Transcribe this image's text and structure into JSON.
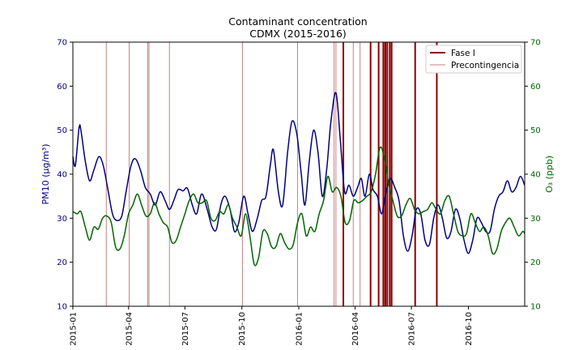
{
  "chart_data": {
    "type": "line",
    "title": "Contaminant concentration",
    "subtitle": "CDMX (2015-2016)",
    "ylabel_left": "PM10 (µg/m³)",
    "ylabel_right": "O₃ (ppb)",
    "ylim_left": [
      10,
      70
    ],
    "ylim_right": [
      10,
      70
    ],
    "yticks": [
      10,
      20,
      30,
      40,
      50,
      60,
      70
    ],
    "xlim": [
      "2015-01-01",
      "2016-12-31"
    ],
    "xticks": [
      "2015-01",
      "2015-04",
      "2015-07",
      "2015-10",
      "2016-01",
      "2016-04",
      "2016-07",
      "2016-10"
    ],
    "grid": false,
    "legend_position": "top-right",
    "legend": [
      {
        "label": "Fase I",
        "color": "#8b0000"
      },
      {
        "label": "Precontingencia",
        "color": "#cd7f7f"
      }
    ],
    "colors": {
      "pm10": "#000080",
      "o3": "#006400",
      "left_axis": "#000080",
      "right_axis": "#006400",
      "fase_i": "#8b0000",
      "precontingencia": "#cd7f7f"
    },
    "series": [
      {
        "axis": "left",
        "points": [
          [
            "2015-01-01",
            44
          ],
          [
            "2015-01-05",
            42
          ],
          [
            "2015-01-11",
            50.5
          ],
          [
            "2015-01-14",
            50
          ],
          [
            "2015-01-21",
            43
          ],
          [
            "2015-01-28",
            38.5
          ],
          [
            "2015-02-04",
            41
          ],
          [
            "2015-02-12",
            44
          ],
          [
            "2015-02-19",
            42
          ],
          [
            "2015-02-26",
            37
          ],
          [
            "2015-03-06",
            31
          ],
          [
            "2015-03-13",
            29.5
          ],
          [
            "2015-03-21",
            30.5
          ],
          [
            "2015-03-28",
            36
          ],
          [
            "2015-04-05",
            42
          ],
          [
            "2015-04-12",
            43.5
          ],
          [
            "2015-04-20",
            41
          ],
          [
            "2015-04-28",
            37
          ],
          [
            "2015-05-06",
            35.5
          ],
          [
            "2015-05-14",
            33
          ],
          [
            "2015-05-22",
            36
          ],
          [
            "2015-05-30",
            34
          ],
          [
            "2015-06-06",
            32
          ],
          [
            "2015-06-13",
            34
          ],
          [
            "2015-06-20",
            36.5
          ],
          [
            "2015-06-28",
            36.2
          ],
          [
            "2015-07-05",
            36.8
          ],
          [
            "2015-07-13",
            33
          ],
          [
            "2015-07-20",
            31
          ],
          [
            "2015-07-28",
            35.5
          ],
          [
            "2015-08-06",
            32
          ],
          [
            "2015-08-14",
            28
          ],
          [
            "2015-08-21",
            27.5
          ],
          [
            "2015-08-28",
            33
          ],
          [
            "2015-09-04",
            35
          ],
          [
            "2015-09-12",
            32
          ],
          [
            "2015-09-19",
            27
          ],
          [
            "2015-09-26",
            29
          ],
          [
            "2015-10-04",
            35
          ],
          [
            "2015-10-11",
            31
          ],
          [
            "2015-10-18",
            27
          ],
          [
            "2015-10-26",
            30
          ],
          [
            "2015-11-02",
            34
          ],
          [
            "2015-11-09",
            35
          ],
          [
            "2015-11-16",
            42
          ],
          [
            "2015-11-21",
            45.5
          ],
          [
            "2015-11-29",
            36
          ],
          [
            "2015-12-06",
            33
          ],
          [
            "2015-12-14",
            45
          ],
          [
            "2015-12-21",
            52
          ],
          [
            "2015-12-29",
            49
          ],
          [
            "2016-01-05",
            40
          ],
          [
            "2016-01-11",
            33
          ],
          [
            "2016-01-18",
            43
          ],
          [
            "2016-01-25",
            50
          ],
          [
            "2016-02-01",
            45
          ],
          [
            "2016-02-08",
            35
          ],
          [
            "2016-02-15",
            41
          ],
          [
            "2016-02-22",
            52
          ],
          [
            "2016-03-01",
            58.5
          ],
          [
            "2016-03-08",
            48
          ],
          [
            "2016-03-15",
            36
          ],
          [
            "2016-03-22",
            37.5
          ],
          [
            "2016-03-29",
            35
          ],
          [
            "2016-04-05",
            37
          ],
          [
            "2016-04-11",
            39
          ],
          [
            "2016-04-17",
            35
          ],
          [
            "2016-04-24",
            40
          ],
          [
            "2016-04-30",
            36.5
          ],
          [
            "2016-05-07",
            35
          ],
          [
            "2016-05-14",
            31
          ],
          [
            "2016-05-21",
            36
          ],
          [
            "2016-05-28",
            39
          ],
          [
            "2016-06-04",
            37
          ],
          [
            "2016-06-11",
            34
          ],
          [
            "2016-06-18",
            26
          ],
          [
            "2016-06-25",
            22.5
          ],
          [
            "2016-07-02",
            26
          ],
          [
            "2016-07-09",
            32
          ],
          [
            "2016-07-16",
            31
          ],
          [
            "2016-07-23",
            25
          ],
          [
            "2016-07-30",
            24
          ],
          [
            "2016-08-06",
            30
          ],
          [
            "2016-08-13",
            33
          ],
          [
            "2016-08-20",
            30
          ],
          [
            "2016-08-27",
            25.5
          ],
          [
            "2016-09-03",
            27
          ],
          [
            "2016-09-10",
            32
          ],
          [
            "2016-09-17",
            30
          ],
          [
            "2016-09-24",
            25
          ],
          [
            "2016-10-01",
            22
          ],
          [
            "2016-10-08",
            25
          ],
          [
            "2016-10-15",
            30
          ],
          [
            "2016-10-22",
            29
          ],
          [
            "2016-10-29",
            27
          ],
          [
            "2016-11-05",
            27
          ],
          [
            "2016-11-12",
            32
          ],
          [
            "2016-11-19",
            35
          ],
          [
            "2016-11-26",
            36
          ],
          [
            "2016-12-03",
            38.5
          ],
          [
            "2016-12-10",
            36
          ],
          [
            "2016-12-17",
            37
          ],
          [
            "2016-12-24",
            39.5
          ],
          [
            "2016-12-31",
            37.5
          ]
        ]
      },
      {
        "axis": "right",
        "points": [
          [
            "2015-01-01",
            31.5
          ],
          [
            "2015-01-08",
            31
          ],
          [
            "2015-01-14",
            31.5
          ],
          [
            "2015-01-21",
            28
          ],
          [
            "2015-01-28",
            25
          ],
          [
            "2015-02-04",
            28
          ],
          [
            "2015-02-11",
            27.5
          ],
          [
            "2015-02-18",
            30
          ],
          [
            "2015-02-25",
            30.5
          ],
          [
            "2015-03-04",
            29
          ],
          [
            "2015-03-11",
            23.5
          ],
          [
            "2015-03-18",
            23
          ],
          [
            "2015-03-25",
            26
          ],
          [
            "2015-04-01",
            31
          ],
          [
            "2015-04-08",
            33
          ],
          [
            "2015-04-15",
            35.5
          ],
          [
            "2015-04-22",
            33
          ],
          [
            "2015-04-29",
            30.5
          ],
          [
            "2015-05-06",
            31
          ],
          [
            "2015-05-13",
            33.5
          ],
          [
            "2015-05-20",
            31
          ],
          [
            "2015-05-27",
            29
          ],
          [
            "2015-06-03",
            28
          ],
          [
            "2015-06-10",
            24.5
          ],
          [
            "2015-06-17",
            25
          ],
          [
            "2015-06-24",
            28
          ],
          [
            "2015-07-01",
            31
          ],
          [
            "2015-07-08",
            34
          ],
          [
            "2015-07-15",
            35.5
          ],
          [
            "2015-07-22",
            33.5
          ],
          [
            "2015-07-29",
            33.5
          ],
          [
            "2015-08-05",
            34
          ],
          [
            "2015-08-12",
            30
          ],
          [
            "2015-08-19",
            29.5
          ],
          [
            "2015-08-26",
            31.5
          ],
          [
            "2015-09-02",
            31
          ],
          [
            "2015-09-09",
            33
          ],
          [
            "2015-09-16",
            30
          ],
          [
            "2015-09-23",
            28
          ],
          [
            "2015-09-30",
            26
          ],
          [
            "2015-10-07",
            31
          ],
          [
            "2015-10-14",
            26
          ],
          [
            "2015-10-21",
            19.5
          ],
          [
            "2015-10-28",
            21
          ],
          [
            "2015-11-04",
            27
          ],
          [
            "2015-11-11",
            26.5
          ],
          [
            "2015-11-18",
            23.5
          ],
          [
            "2015-11-25",
            23.5
          ],
          [
            "2015-12-02",
            26.5
          ],
          [
            "2015-12-09",
            24.5
          ],
          [
            "2015-12-16",
            23
          ],
          [
            "2015-12-23",
            24
          ],
          [
            "2015-12-30",
            29
          ],
          [
            "2016-01-06",
            31
          ],
          [
            "2016-01-13",
            26
          ],
          [
            "2016-01-20",
            28
          ],
          [
            "2016-01-27",
            27
          ],
          [
            "2016-02-03",
            31
          ],
          [
            "2016-02-10",
            34
          ],
          [
            "2016-02-17",
            39.5
          ],
          [
            "2016-02-24",
            36
          ],
          [
            "2016-03-02",
            37
          ],
          [
            "2016-03-09",
            35
          ],
          [
            "2016-03-16",
            29
          ],
          [
            "2016-03-23",
            29.5
          ],
          [
            "2016-03-30",
            34
          ],
          [
            "2016-04-06",
            33.5
          ],
          [
            "2016-04-13",
            34
          ],
          [
            "2016-04-20",
            35
          ],
          [
            "2016-04-27",
            36
          ],
          [
            "2016-05-04",
            40
          ],
          [
            "2016-05-11",
            46
          ],
          [
            "2016-05-18",
            44
          ],
          [
            "2016-05-25",
            38
          ],
          [
            "2016-06-01",
            34
          ],
          [
            "2016-06-08",
            30.5
          ],
          [
            "2016-06-15",
            30.5
          ],
          [
            "2016-06-22",
            33
          ],
          [
            "2016-06-29",
            34.5
          ],
          [
            "2016-07-06",
            32
          ],
          [
            "2016-07-13",
            31
          ],
          [
            "2016-07-20",
            31.5
          ],
          [
            "2016-07-27",
            32
          ],
          [
            "2016-08-03",
            33.5
          ],
          [
            "2016-08-10",
            32
          ],
          [
            "2016-08-17",
            31
          ],
          [
            "2016-08-24",
            34
          ],
          [
            "2016-08-31",
            35
          ],
          [
            "2016-09-07",
            31
          ],
          [
            "2016-09-14",
            27
          ],
          [
            "2016-09-21",
            26
          ],
          [
            "2016-09-28",
            26.5
          ],
          [
            "2016-10-05",
            31
          ],
          [
            "2016-10-12",
            29
          ],
          [
            "2016-10-19",
            27
          ],
          [
            "2016-10-26",
            28
          ],
          [
            "2016-11-02",
            26
          ],
          [
            "2016-11-09",
            22
          ],
          [
            "2016-11-16",
            23
          ],
          [
            "2016-11-23",
            27
          ],
          [
            "2016-11-30",
            29
          ],
          [
            "2016-12-07",
            30
          ],
          [
            "2016-12-14",
            28
          ],
          [
            "2016-12-21",
            26
          ],
          [
            "2016-12-28",
            27
          ],
          [
            "2016-12-31",
            26.5
          ]
        ]
      }
    ],
    "events_fase_i": [
      "2016-03-13",
      "2016-04-26",
      "2016-05-09",
      "2016-05-17",
      "2016-05-20",
      "2016-05-23",
      "2016-05-27",
      "2016-05-30",
      "2016-07-07",
      "2016-08-11"
    ],
    "events_precontingencia": [
      "2015-02-24",
      "2015-04-02",
      "2015-05-02",
      "2015-05-04",
      "2015-06-06",
      "2015-10-02",
      "2015-12-30",
      "2016-02-27",
      "2016-03-01",
      "2016-03-29",
      "2016-04-09",
      "2016-04-26",
      "2016-05-15",
      "2016-05-20"
    ]
  }
}
